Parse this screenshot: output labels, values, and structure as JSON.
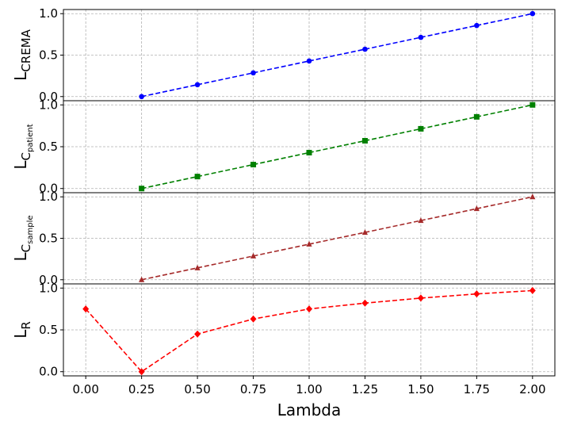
{
  "chart_data": {
    "type": "line",
    "xlabel": "Lambda",
    "x": [
      0.0,
      0.25,
      0.5,
      0.75,
      1.0,
      1.25,
      1.5,
      1.75,
      2.0
    ],
    "xlim": [
      -0.1,
      2.1
    ],
    "xticks": [
      "0.00",
      "0.25",
      "0.50",
      "0.75",
      "1.00",
      "1.25",
      "1.50",
      "1.75",
      "2.00"
    ],
    "grid": true,
    "subplots": [
      {
        "ylabel_main": "L",
        "ylabel_sub": "CREMA",
        "sub_style": "subscript",
        "color": "#0000ff",
        "marker": "circle",
        "ylim": [
          -0.05,
          1.05
        ],
        "yticks": [
          "0.0",
          "0.5",
          "1.0"
        ],
        "x": [
          0.25,
          0.5,
          0.75,
          1.0,
          1.25,
          1.5,
          1.75,
          2.0
        ],
        "values": [
          0.0,
          0.143,
          0.286,
          0.429,
          0.571,
          0.714,
          0.857,
          1.0
        ]
      },
      {
        "ylabel_main": "L",
        "ylabel_c": "C",
        "ylabel_sub": "patient",
        "sub_style": "double",
        "color": "#008000",
        "marker": "square",
        "ylim": [
          -0.05,
          1.05
        ],
        "yticks": [
          "0.0",
          "0.5",
          "1.0"
        ],
        "x": [
          0.25,
          0.5,
          0.75,
          1.0,
          1.25,
          1.5,
          1.75,
          2.0
        ],
        "values": [
          0.0,
          0.143,
          0.286,
          0.429,
          0.571,
          0.714,
          0.857,
          1.0
        ]
      },
      {
        "ylabel_main": "L",
        "ylabel_c": "C",
        "ylabel_sub": "sample",
        "sub_style": "double",
        "color": "#a52a2a",
        "marker": "triangle",
        "ylim": [
          -0.05,
          1.05
        ],
        "yticks": [
          "0.0",
          "0.5",
          "1.0"
        ],
        "x": [
          0.25,
          0.5,
          0.75,
          1.0,
          1.25,
          1.5,
          1.75,
          2.0
        ],
        "values": [
          0.0,
          0.143,
          0.286,
          0.429,
          0.571,
          0.714,
          0.857,
          1.0
        ]
      },
      {
        "ylabel_main": "L",
        "ylabel_sub": "R",
        "sub_style": "subscript",
        "color": "#ff0000",
        "marker": "diamond",
        "ylim": [
          -0.05,
          1.05
        ],
        "yticks": [
          "0.0",
          "0.5",
          "1.0"
        ],
        "x": [
          0.0,
          0.25,
          0.5,
          0.75,
          1.0,
          1.25,
          1.5,
          1.75,
          2.0
        ],
        "values": [
          0.75,
          0.0,
          0.45,
          0.63,
          0.75,
          0.82,
          0.88,
          0.93,
          0.97
        ]
      }
    ]
  }
}
